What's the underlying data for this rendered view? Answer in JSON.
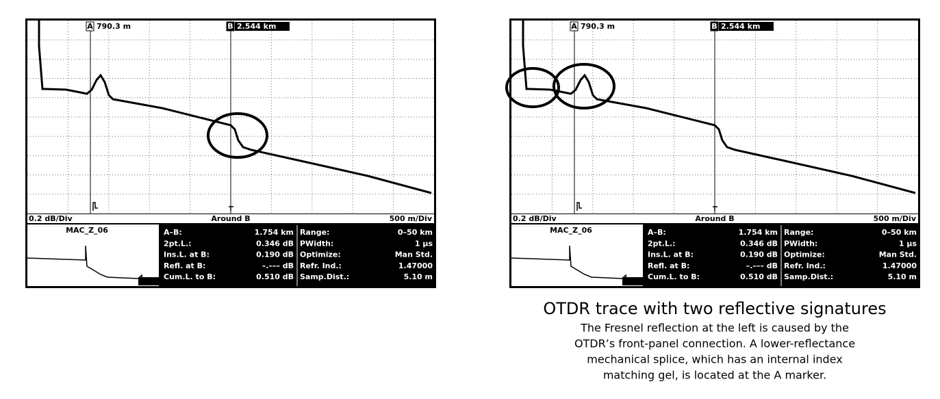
{
  "panels": [
    {
      "markers": [
        {
          "letter": "A",
          "value": "790.3 m"
        },
        {
          "letter": "B",
          "value": "2.544 km"
        }
      ],
      "status": {
        "left": "0.2 dB/Div",
        "center": "Around B",
        "right": "500 m/Div"
      },
      "trace_name": "MAC_Z_06",
      "rows": [
        [
          "A–B:",
          "1.754 km",
          "Range:",
          "0–50 km"
        ],
        [
          "2pt.L.:",
          "0.346 dB",
          "PWidth:",
          "1 μs"
        ],
        [
          "Ins.L. at B:",
          "0.190 dB",
          "Optimize:",
          "Man Std."
        ],
        [
          "Refl. at B:",
          "–.––– dB",
          "Refr. Ind.:",
          "1.47000"
        ],
        [
          "Cum.L. to B:",
          "0.510 dB",
          "Samp.Dist.:",
          "5.10 m"
        ]
      ]
    },
    {
      "markers": [
        {
          "letter": "A",
          "value": "790.3 m"
        },
        {
          "letter": "B",
          "value": "2.544 km"
        }
      ],
      "status": {
        "left": "0.2 dB/Div",
        "center": "Around B",
        "right": "500 m/Div"
      },
      "trace_name": "MAC_Z_06",
      "rows": [
        [
          "A–B:",
          "1.754 km",
          "Range:",
          "0–50 km"
        ],
        [
          "2pt.L.:",
          "0.346 dB",
          "PWidth:",
          "1 μs"
        ],
        [
          "Ins.L. at B:",
          "0.190 dB",
          "Optimize:",
          "Man Std."
        ],
        [
          "Refl. at B:",
          "–.––– dB",
          "Refr. Ind.:",
          "1.47000"
        ],
        [
          "Cum.L. to B:",
          "0.510 dB",
          "Samp.Dist.:",
          "5.10 m"
        ]
      ]
    }
  ],
  "caption": {
    "title": "OTDR trace with two reflective signatures",
    "lines": [
      "The Fresnel reflection at the left is caused by the",
      "OTDR’s front-panel connection. A lower-reflectance",
      "mechanical splice, which has an internal index",
      "matching gel, is located at the A marker."
    ]
  }
}
